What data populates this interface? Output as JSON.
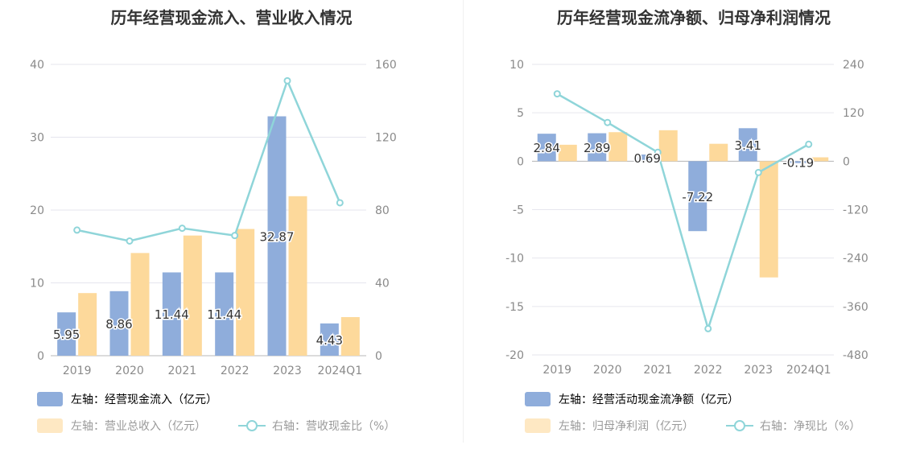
{
  "colors": {
    "bar_blue": "#8faddb",
    "bar_yellow": "#fdd99b",
    "line_teal": "#8fd5d9",
    "grid": "#e6e6ee",
    "axis_text": "#8a8a8a",
    "legend_text_dim": "#9a9a9a"
  },
  "chart_data": [
    {
      "type": "bar",
      "title": "历年经营现金流入、营业收入情况",
      "categories": [
        "2019",
        "2020",
        "2021",
        "2022",
        "2023",
        "2024Q1"
      ],
      "left_ylim": [
        0,
        40
      ],
      "left_ticks": [
        "40",
        "30",
        "20",
        "10",
        "0"
      ],
      "right_ylim": [
        0,
        160
      ],
      "right_ticks": [
        "160",
        "120",
        "80",
        "40",
        "0"
      ],
      "series": [
        {
          "name": "左轴：经营现金流入（亿元）",
          "axis": "left",
          "type": "bar",
          "color": "#8faddb",
          "values": [
            5.95,
            8.86,
            11.44,
            11.44,
            32.87,
            4.43
          ],
          "labels": [
            "5.95",
            "8.86",
            "11.44",
            "11.44",
            "32.87",
            "4.43"
          ]
        },
        {
          "name": "左轴：营业总收入（亿元）",
          "axis": "left",
          "type": "bar",
          "color": "#fdd99b",
          "values": [
            8.6,
            14.1,
            16.5,
            17.4,
            21.9,
            5.3
          ]
        },
        {
          "name": "右轴：营收现金比（%）",
          "axis": "right",
          "type": "line",
          "color": "#8fd5d9",
          "values": [
            69,
            63,
            70,
            66,
            151,
            84
          ]
        }
      ],
      "grid": true,
      "legend_position": "bottom"
    },
    {
      "type": "bar",
      "title": "历年经营现金流净额、归母净利润情况",
      "categories": [
        "2019",
        "2020",
        "2021",
        "2022",
        "2023",
        "2024Q1"
      ],
      "left_ylim": [
        -20,
        10
      ],
      "left_ticks": [
        "10",
        "5",
        "0",
        "-5",
        "-10",
        "-15",
        "-20"
      ],
      "right_ylim": [
        -480,
        240
      ],
      "right_ticks": [
        "240",
        "120",
        "0",
        "-120",
        "-240",
        "-360",
        "-480"
      ],
      "series": [
        {
          "name": "左轴：经营活动现金流净额（亿元）",
          "axis": "left",
          "type": "bar",
          "color": "#8faddb",
          "values": [
            2.84,
            2.89,
            0.69,
            -7.22,
            3.41,
            -0.19
          ],
          "labels": [
            "2.84",
            "2.89",
            "0.69",
            "-7.22",
            "3.41",
            "-0.19"
          ]
        },
        {
          "name": "左轴：归母净利润（亿元）",
          "axis": "left",
          "type": "bar",
          "color": "#fdd99b",
          "values": [
            1.7,
            3.0,
            3.2,
            1.8,
            -12.0,
            0.4
          ]
        },
        {
          "name": "右轴：净现比（%）",
          "axis": "right",
          "type": "line",
          "color": "#8fd5d9",
          "values": [
            167,
            96,
            22,
            -415,
            -28,
            42
          ]
        }
      ],
      "grid": true,
      "legend_position": "bottom"
    }
  ]
}
